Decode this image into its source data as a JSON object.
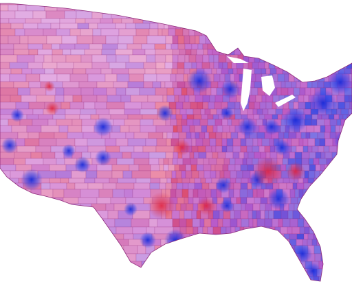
{
  "map": {
    "kind": "choropleth",
    "region": "contiguous-united-states",
    "units": "counties",
    "color_scale": {
      "low": "#e23a4a",
      "mid": "#b24cc6",
      "high": "#2f3fe0",
      "light": "#f1c6ea"
    },
    "border_color": "#8e2a7a",
    "background": "#ffffff"
  }
}
